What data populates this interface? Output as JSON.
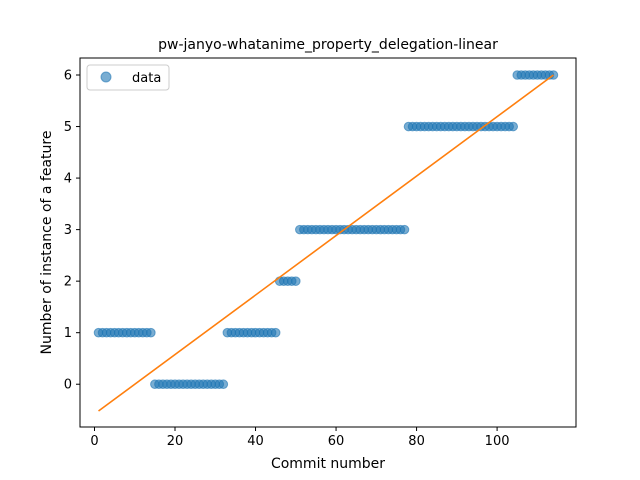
{
  "chart_data": {
    "type": "scatter",
    "title": "pw-janyo-whatanime_property_delegation-linear",
    "xlabel": "Commit number",
    "ylabel": "Number of instance of a feature",
    "xlim": [
      -3.6,
      119.6
    ],
    "ylim": [
      -0.83,
      6.33
    ],
    "xticks": [
      0,
      20,
      40,
      60,
      80,
      100
    ],
    "yticks": [
      0,
      1,
      2,
      3,
      4,
      5,
      6
    ],
    "legend": {
      "position": "top-left",
      "entries": [
        "data"
      ]
    },
    "colors": {
      "points": "#1f77b4",
      "fit": "#ff7f0e"
    },
    "series": [
      {
        "name": "data",
        "kind": "points",
        "segments": [
          {
            "x_start": 1,
            "x_end": 14,
            "y": 1
          },
          {
            "x_start": 15,
            "x_end": 32,
            "y": 0
          },
          {
            "x_start": 33,
            "x_end": 45,
            "y": 1
          },
          {
            "x_start": 46,
            "x_end": 50,
            "y": 2
          },
          {
            "x_start": 51,
            "x_end": 77,
            "y": 3
          },
          {
            "x_start": 78,
            "x_end": 104,
            "y": 5
          },
          {
            "x_start": 105,
            "x_end": 114,
            "y": 6
          }
        ]
      },
      {
        "kind": "line",
        "x": [
          1,
          114
        ],
        "y": [
          -0.52,
          6.0
        ]
      }
    ]
  }
}
